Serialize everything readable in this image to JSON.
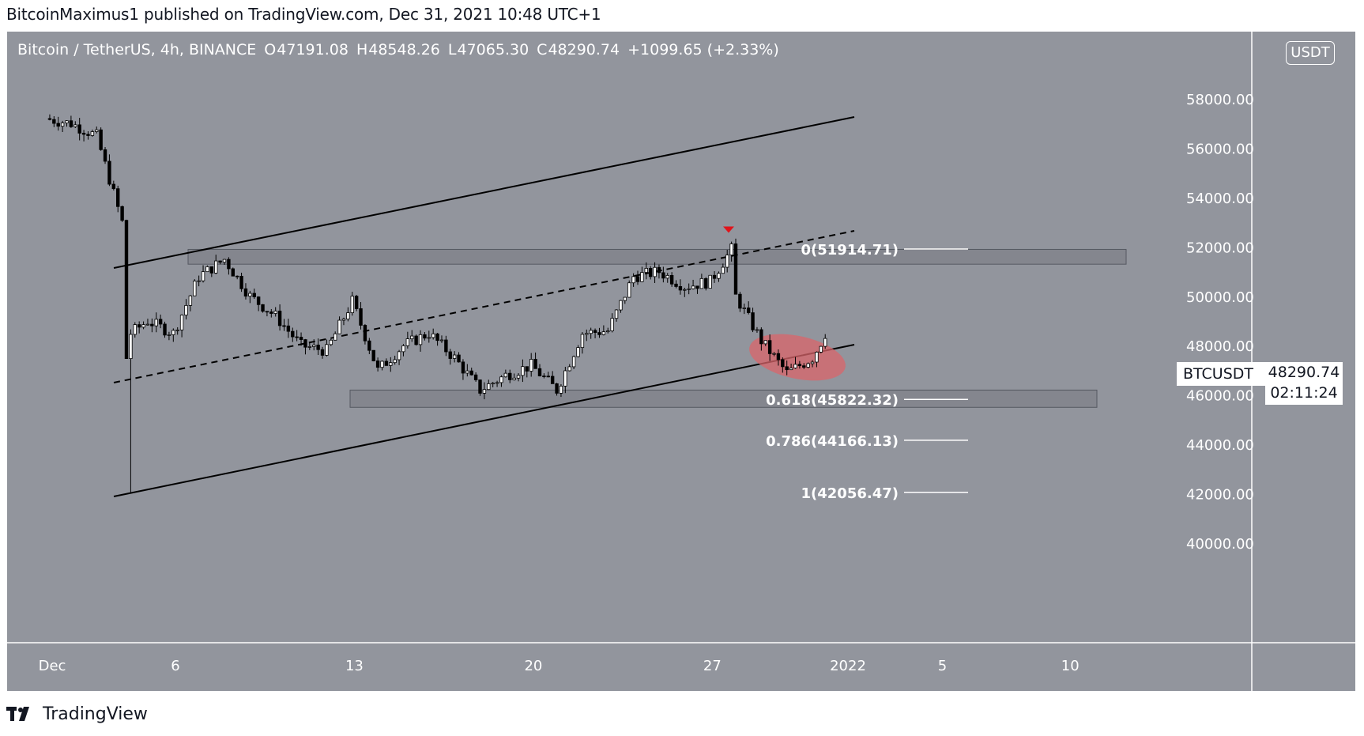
{
  "header": {
    "publisher_line": "BitcoinMaximus1 published on TradingView.com, Dec 31, 2021 10:48 UTC+1"
  },
  "symbol": {
    "name": "Bitcoin / TetherUS, 4h, BINANCE",
    "open_label": "O",
    "open": "47191.08",
    "high_label": "H",
    "high": "48548.26",
    "low_label": "L",
    "low": "47065.30",
    "close_label": "C",
    "close": "48290.74",
    "change": "+1099.65 (+2.33%)"
  },
  "currency_badge": "USDT",
  "ticker_tag": "BTCUSDT",
  "last_price": "48290.74",
  "countdown": "02:11:24",
  "footer": {
    "brand": "TradingView"
  },
  "colors": {
    "chart_bg": "#92959d",
    "candle_up": "#ffffff",
    "candle_down": "#000000",
    "zone_fill": "#7f828a",
    "highlight_ellipse": "#d9666b",
    "marker": "#e0141b"
  },
  "chart_data": {
    "type": "candlestick",
    "title": "Bitcoin / TetherUS, 4h, BINANCE",
    "x_axis_ticks": [
      "Dec",
      "6",
      "13",
      "20",
      "27",
      "2022",
      "5",
      "10"
    ],
    "y_axis_ticks": [
      "40000.00",
      "42000.00",
      "44000.00",
      "46000.00",
      "48000.00",
      "50000.00",
      "52000.00",
      "54000.00",
      "56000.00",
      "58000.00"
    ],
    "ylim": [
      38000,
      60500
    ],
    "price_path": [
      [
        "Dec 1",
        57200
      ],
      [
        "Dec 2",
        57000
      ],
      [
        "Dec 3",
        56500
      ],
      [
        "Dec 4 00:00",
        53000
      ],
      [
        "Dec 4 04:00",
        47500
      ],
      [
        "Dec 4 08:00",
        48500
      ],
      [
        "Dec 5",
        49000
      ],
      [
        "Dec 6",
        48500
      ],
      [
        "Dec 7",
        50800
      ],
      [
        "Dec 8",
        51500
      ],
      [
        "Dec 9",
        50000
      ],
      [
        "Dec 10",
        49200
      ],
      [
        "Dec 11",
        48000
      ],
      [
        "Dec 12",
        47800
      ],
      [
        "Dec 13",
        49800
      ],
      [
        "Dec 14",
        47000
      ],
      [
        "Dec 15",
        48000
      ],
      [
        "Dec 16",
        48500
      ],
      [
        "Dec 17",
        47500
      ],
      [
        "Dec 18",
        46200
      ],
      [
        "Dec 19",
        46800
      ],
      [
        "Dec 20",
        47200
      ],
      [
        "Dec 21",
        46200
      ],
      [
        "Dec 22",
        48500
      ],
      [
        "Dec 23",
        48600
      ],
      [
        "Dec 24",
        50800
      ],
      [
        "Dec 25",
        51000
      ],
      [
        "Dec 26",
        50400
      ],
      [
        "Dec 27",
        50600
      ],
      [
        "Dec 27 20:00",
        51900
      ],
      [
        "Dec 28",
        50000
      ],
      [
        "Dec 29",
        48200
      ],
      [
        "Dec 30",
        46900
      ],
      [
        "Dec 31",
        47500
      ],
      [
        "Dec 31 10:00",
        48290.74
      ]
    ],
    "last_candle": {
      "open": 47191.08,
      "high": 48548.26,
      "low": 47065.3,
      "close": 48290.74,
      "change": "+1099.65 (+2.33%)"
    },
    "fibonacci_levels": [
      {
        "label": "0(51914.71)",
        "level": "0",
        "price": 51914.71
      },
      {
        "label": "0.618(45822.32)",
        "level": "0.618",
        "price": 45822.32
      },
      {
        "label": "0.786(44166.13)",
        "level": "0.786",
        "price": 44166.13
      },
      {
        "label": "1(42056.47)",
        "level": "1",
        "price": 42056.47
      }
    ],
    "horizontal_zones": [
      {
        "from": "Dec 7",
        "to": "Jan 10",
        "low": 51300,
        "high": 51900
      },
      {
        "from": "Dec 13",
        "to": "Jan 9",
        "low": 45500,
        "high": 46200
      }
    ],
    "trend_lines": [
      {
        "style": "solid",
        "from": [
          "Dec 4",
          51200
        ],
        "to": [
          "Jan 1",
          57300
        ]
      },
      {
        "style": "dashed",
        "from": [
          "Dec 4",
          46700
        ],
        "to": [
          "Jan 1",
          52700
        ]
      },
      {
        "style": "solid",
        "from": [
          "Dec 4",
          42000
        ],
        "to": [
          "Jan 1",
          48100
        ]
      }
    ],
    "annotations": [
      {
        "type": "down-arrow",
        "at": [
          "Dec 27 20:00",
          52700
        ]
      },
      {
        "type": "ellipse",
        "center": [
          "Dec 30",
          47600
        ]
      }
    ]
  }
}
